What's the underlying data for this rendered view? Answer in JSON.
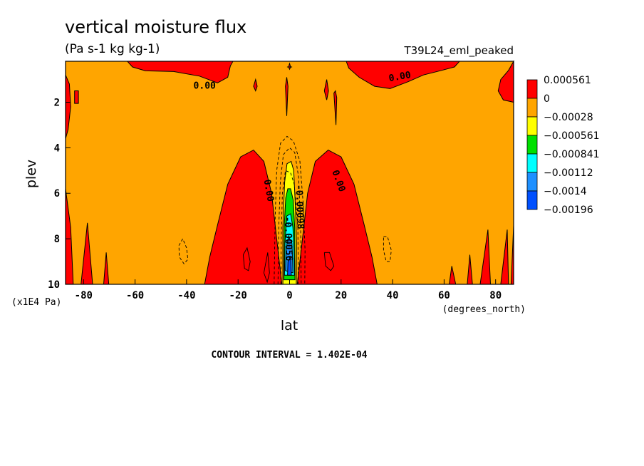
{
  "chart_data": {
    "type": "heatmap",
    "title": "vertical moisture flux",
    "units": "(Pa s-1 kg kg-1)",
    "run_name": "T39L24_eml_peaked",
    "xlabel": "lat",
    "ylabel": "plev",
    "x_unit": "(degrees_north)",
    "y_unit": "(x1E4 Pa)",
    "xlim": [
      -87,
      87
    ],
    "ylim": [
      10,
      0.2
    ],
    "x_ticks": [
      -80,
      -60,
      -40,
      -20,
      0,
      20,
      40,
      60,
      80
    ],
    "x_tick_labels": [
      "-80",
      "-60",
      "-40",
      "-20",
      "0",
      "20",
      "40",
      "60",
      "80"
    ],
    "y_ticks": [
      2,
      4,
      6,
      8,
      10
    ],
    "y_tick_labels": [
      "2",
      "4",
      "6",
      "8",
      "10"
    ],
    "contour_interval_text": "CONTOUR INTERVAL = 1.402E-04",
    "contour_labels": [
      "0.00",
      "0.00",
      "0.00",
      "0.00",
      "-0.00056",
      "-0.00098"
    ],
    "colorbar": {
      "labels": [
        "0.000561",
        "0",
        "−0.00028",
        "−0.000561",
        "−0.000841",
        "−0.00112",
        "−0.0014",
        "−0.00196"
      ],
      "colors": [
        "#ff0000",
        "#ffa500",
        "#ffff00",
        "#00e000",
        "#00ffff",
        "#1e90ff",
        "#0050ff"
      ]
    },
    "colors": {
      "background": "#ffa500",
      "positive": "#ff0000",
      "neg1": "#ffff00",
      "neg2": "#00e000",
      "neg3": "#00ffff",
      "neg4": "#1e90ff",
      "neg5": "#0050ff"
    }
  }
}
